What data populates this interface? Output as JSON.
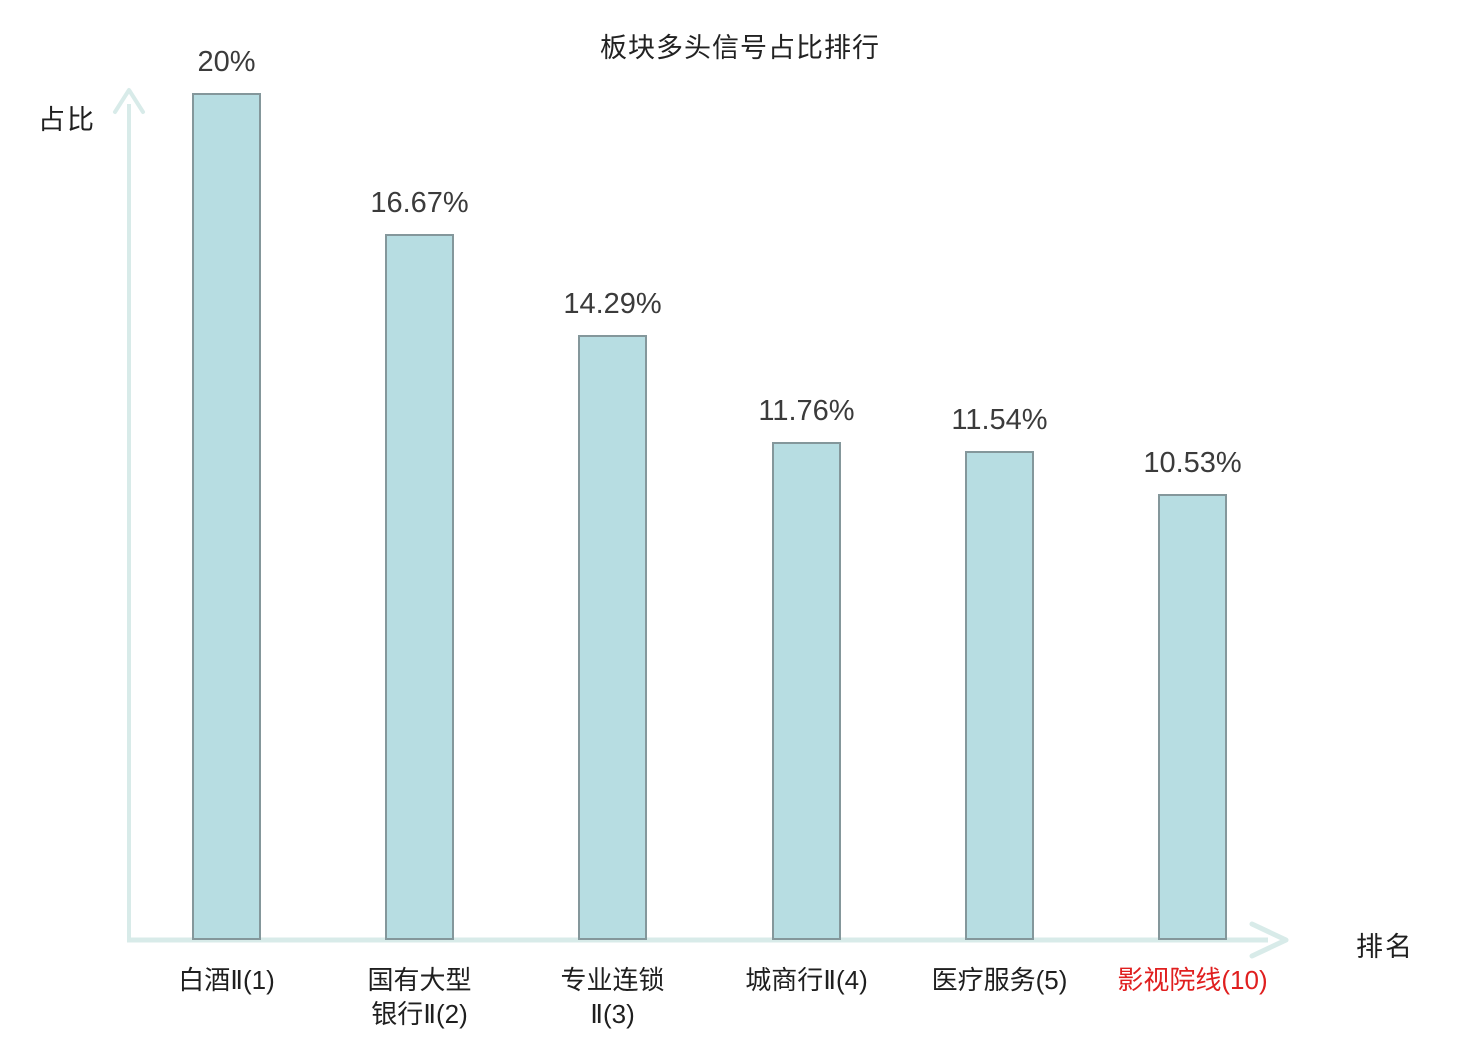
{
  "title": "板块多头信号占比排行",
  "axes": {
    "y_label": "占比",
    "x_label": "排名"
  },
  "colors": {
    "bar_fill": "#b7dde2",
    "bar_border": "#84979b",
    "axis": "#d8ebe9",
    "title_text": "#222222",
    "value_text": "#3b3b3b",
    "category_text": "#1f1f1f",
    "highlight_text": "#e01f1f"
  },
  "chart_data": {
    "type": "bar",
    "title": "板块多头信号占比排行",
    "xlabel": "排名",
    "ylabel": "占比",
    "ylim": [
      0,
      20
    ],
    "grid": false,
    "legend": "none",
    "categories": [
      "白酒Ⅱ(1)",
      "国有大型银行Ⅱ(2)",
      "专业连锁Ⅱ(3)",
      "城商行Ⅱ(4)",
      "医疗服务(5)",
      "影视院线(10)"
    ],
    "category_lines": [
      [
        "白酒Ⅱ(1)"
      ],
      [
        "国有大型",
        "银行Ⅱ(2)"
      ],
      [
        "专业连锁",
        "Ⅱ(3)"
      ],
      [
        "城商行Ⅱ(4)"
      ],
      [
        "医疗服务(5)"
      ],
      [
        "影视院线(10)"
      ]
    ],
    "values": [
      20,
      16.67,
      14.29,
      11.76,
      11.54,
      10.53
    ],
    "value_labels": [
      "20%",
      "16.67%",
      "14.29%",
      "11.76%",
      "11.54%",
      "10.53%"
    ],
    "highlight_index": 5
  }
}
